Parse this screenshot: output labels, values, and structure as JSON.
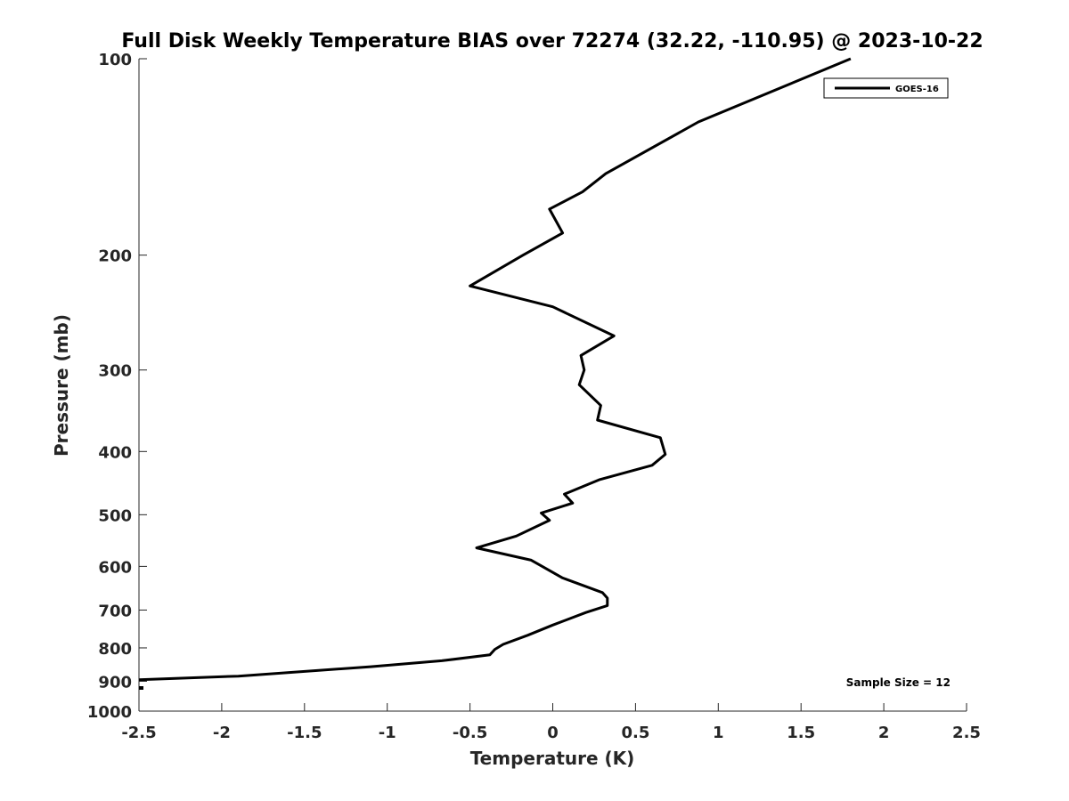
{
  "chart_data": {
    "type": "line",
    "title": "Full Disk Weekly Temperature BIAS over 72274 (32.22, -110.95) @ 2023-10-22",
    "xlabel": "Temperature (K)",
    "ylabel": "Pressure (mb)",
    "xlim": [
      -2.5,
      2.5
    ],
    "ylim": [
      1000,
      100
    ],
    "y_scale": "log",
    "y_reversed": true,
    "grid": false,
    "legend_position": "top-right",
    "x_ticks": [
      "-2.5",
      "-2",
      "-1.5",
      "-1",
      "-0.5",
      "0",
      "0.5",
      "1",
      "1.5",
      "2",
      "2.5"
    ],
    "x_tick_values": [
      -2.5,
      -2,
      -1.5,
      -1,
      -0.5,
      0,
      0.5,
      1,
      1.5,
      2,
      2.5
    ],
    "y_ticks": [
      "100",
      "200",
      "300",
      "400",
      "500",
      "600",
      "700",
      "800",
      "900",
      "1000"
    ],
    "y_tick_values": [
      100,
      200,
      300,
      400,
      500,
      600,
      700,
      800,
      900,
      1000
    ],
    "series": [
      {
        "name": "GOES-16",
        "color": "#000000",
        "points": [
          [
            1.8,
            100
          ],
          [
            0.88,
            125
          ],
          [
            0.32,
            150
          ],
          [
            0.18,
            160
          ],
          [
            -0.02,
            170
          ],
          [
            0.06,
            185
          ],
          [
            -0.18,
            200
          ],
          [
            -0.5,
            223
          ],
          [
            0.0,
            240
          ],
          [
            0.37,
            266
          ],
          [
            0.17,
            285
          ],
          [
            0.19,
            300
          ],
          [
            0.16,
            316
          ],
          [
            0.29,
            340
          ],
          [
            0.27,
            358
          ],
          [
            0.65,
            381
          ],
          [
            0.68,
            404
          ],
          [
            0.6,
            420
          ],
          [
            0.28,
            442
          ],
          [
            0.07,
            465
          ],
          [
            0.12,
            480
          ],
          [
            -0.07,
            497
          ],
          [
            -0.02,
            510
          ],
          [
            -0.22,
            539
          ],
          [
            -0.46,
            562
          ],
          [
            -0.13,
            587
          ],
          [
            0.06,
            625
          ],
          [
            0.3,
            658
          ],
          [
            0.33,
            671
          ],
          [
            0.33,
            689
          ],
          [
            0.2,
            706
          ],
          [
            0.0,
            738
          ],
          [
            -0.15,
            765
          ],
          [
            -0.3,
            790
          ],
          [
            -0.35,
            804
          ],
          [
            -0.38,
            820
          ],
          [
            -0.67,
            837
          ],
          [
            -1.1,
            855
          ],
          [
            -1.9,
            884
          ],
          [
            -2.5,
            895
          ]
        ]
      }
    ],
    "annotations": [
      "Sample Size = 12"
    ]
  }
}
